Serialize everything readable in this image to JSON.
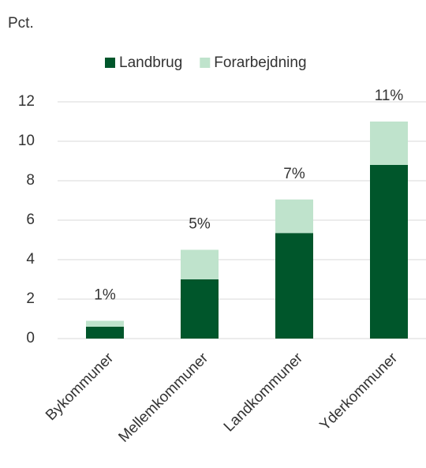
{
  "chart_data": {
    "type": "stacked_bar",
    "axis_title": "Pct.",
    "categories": [
      "Bykommuner",
      "Mellemkommuner",
      "Landkommuner",
      "Yderkommuner"
    ],
    "series": [
      {
        "name": "Landbrug",
        "color": "#00562b",
        "values": [
          0.6,
          3.0,
          5.35,
          8.8
        ]
      },
      {
        "name": "Forarbejdning",
        "color": "#bfe3cc",
        "values": [
          0.3,
          1.5,
          1.7,
          2.2
        ]
      }
    ],
    "annotations": [
      "1%",
      "5%",
      "7%",
      "11%"
    ],
    "ylim": [
      0,
      12
    ],
    "yticks": [
      0,
      2,
      4,
      6,
      8,
      10,
      12
    ],
    "grid": true,
    "legend": "top"
  }
}
